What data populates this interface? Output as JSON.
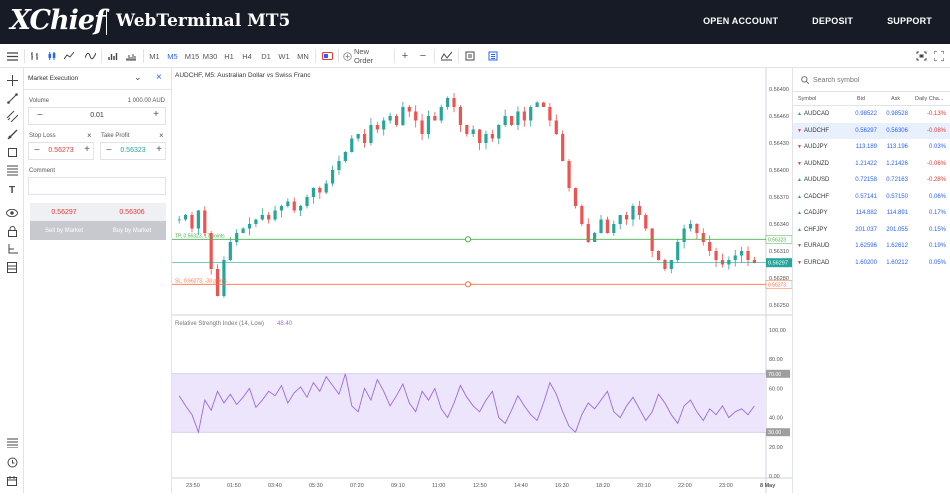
{
  "header": {
    "logo_text": "XChief",
    "app_title": "WebTerminal MT5",
    "nav": [
      "OPEN ACCOUNT",
      "DEPOSIT",
      "SUPPORT"
    ]
  },
  "toolbar": {
    "timeframes": [
      "M1",
      "M5",
      "M15",
      "M30",
      "H1",
      "H4",
      "D1",
      "W1",
      "MN"
    ],
    "active_timeframe": "M5",
    "new_order_label": "New Order"
  },
  "order_panel": {
    "execution_type": "Market Execution",
    "volume_label": "Volume",
    "volume_hint": "1 000.00 AUD",
    "volume_value": "0.01",
    "stop_loss_label": "Stop Loss",
    "stop_loss_value": "0.56273",
    "take_profit_label": "Take Profit",
    "take_profit_value": "0.56323",
    "comment_label": "Comment",
    "comment_value": "",
    "sell_price": "0.56297",
    "buy_price": "0.56306",
    "sell_label": "Sell by Market",
    "buy_label": "Buy by Market",
    "minus": "−",
    "plus": "+",
    "close": "×",
    "chevron": "⌄"
  },
  "chart": {
    "title": "AUDCHF, M5: Australian Dollar vs Swiss Franc",
    "price_ticks": [
      "0.56490",
      "0.56460",
      "0.56430",
      "0.56400",
      "0.56370",
      "0.56340",
      "0.56310",
      "0.56280",
      "0.56250"
    ],
    "tp_label": "TP, 0.56323, 17 points",
    "sl_label": "SL, 0.56273, -33 points",
    "tp_tag": "0.56323",
    "sl_tag": "0.56273",
    "current_price": "0.56297",
    "indicator_title": "Relative Strength Index (14, Low)",
    "indicator_value": "48.40",
    "rsi_ticks": [
      "100.00",
      "80.00",
      "60.00",
      "40.00",
      "20.00",
      "0.00"
    ],
    "rsi_70": "70.00",
    "rsi_30": "30.00",
    "time_ticks": [
      "23:50",
      "01:50",
      "03:40",
      "05:30",
      "07:20",
      "09:10",
      "11:00",
      "12:50",
      "14:40",
      "16:30",
      "18:20",
      "20:10",
      "22:00",
      "23:00",
      "8 May"
    ],
    "colors": {
      "bull": "#26a69a",
      "bear": "#ef5350",
      "tp": "#4caf50",
      "sl": "#ff7043",
      "rsi": "#9c6ade",
      "rsi_band": "#ede5fb"
    }
  },
  "chart_data": {
    "type": "candlestick",
    "symbol": "AUDCHF",
    "timeframe": "M5",
    "ylim": [
      0.5624,
      0.565
    ],
    "rsi_ylim": [
      0,
      100
    ],
    "close_path": [
      0.56345,
      0.5635,
      0.56335,
      0.56355,
      0.5633,
      0.5629,
      0.5626,
      0.563,
      0.5632,
      0.5633,
      0.56335,
      0.5634,
      0.56345,
      0.5635,
      0.56345,
      0.56355,
      0.5636,
      0.56365,
      0.56355,
      0.5636,
      0.5637,
      0.5638,
      0.56375,
      0.56385,
      0.564,
      0.5641,
      0.5642,
      0.56435,
      0.5644,
      0.5643,
      0.5645,
      0.56445,
      0.56455,
      0.5646,
      0.5645,
      0.5647,
      0.56465,
      0.56455,
      0.5644,
      0.5646,
      0.56455,
      0.5647,
      0.5648,
      0.5647,
      0.5645,
      0.5644,
      0.56445,
      0.5643,
      0.5644,
      0.56435,
      0.5645,
      0.5646,
      0.5645,
      0.56465,
      0.56455,
      0.5647,
      0.56475,
      0.5647,
      0.56455,
      0.5644,
      0.5641,
      0.5638,
      0.5636,
      0.5634,
      0.5632,
      0.5633,
      0.56345,
      0.5633,
      0.5634,
      0.5635,
      0.56345,
      0.5636,
      0.5635,
      0.56335,
      0.5631,
      0.563,
      0.5629,
      0.563,
      0.5632,
      0.56335,
      0.5634,
      0.5633,
      0.5632,
      0.5631,
      0.563,
      0.56295,
      0.563,
      0.56305,
      0.5631,
      0.563,
      0.56297
    ],
    "rsi_path": [
      55,
      48,
      42,
      30,
      52,
      45,
      58,
      50,
      56,
      49,
      54,
      60,
      47,
      52,
      58,
      55,
      62,
      50,
      57,
      61,
      54,
      64,
      58,
      68,
      62,
      56,
      70,
      48,
      44,
      60,
      52,
      66,
      58,
      48,
      55,
      63,
      50,
      44,
      58,
      52,
      60,
      46,
      40,
      50,
      62,
      54,
      48,
      44,
      52,
      58,
      40,
      36,
      45,
      55,
      48,
      42,
      38,
      50,
      64,
      56,
      44,
      34,
      30,
      42,
      50,
      46,
      52,
      58,
      44,
      40,
      48,
      54,
      46,
      38,
      44,
      56,
      50,
      42,
      36,
      48,
      52,
      44,
      38,
      46,
      42,
      48,
      40,
      44,
      46,
      42,
      48
    ],
    "tp": 0.56323,
    "sl": 0.56273,
    "last": 0.56297
  },
  "right_panel": {
    "search_placeholder": "Search symbol",
    "columns": [
      "Symbol",
      "Bid",
      "Ask",
      "Daily Cha..."
    ],
    "rows": [
      {
        "symbol": "AUDCAD",
        "bid": "0.98522",
        "ask": "0.98528",
        "change": "-0.13%",
        "dir": "up",
        "neg": true
      },
      {
        "symbol": "AUDCHF",
        "bid": "0.56297",
        "ask": "0.56306",
        "change": "-0.08%",
        "dir": "dn",
        "neg": true
      },
      {
        "symbol": "AUDJPY",
        "bid": "113.189",
        "ask": "113.196",
        "change": "0.03%",
        "dir": "dn",
        "neg": false
      },
      {
        "symbol": "AUDNZD",
        "bid": "1.21422",
        "ask": "1.21426",
        "change": "-0.06%",
        "dir": "dn",
        "neg": true
      },
      {
        "symbol": "AUDUSD",
        "bid": "0.72158",
        "ask": "0.72163",
        "change": "-0.28%",
        "dir": "up",
        "neg": true
      },
      {
        "symbol": "CADCHF",
        "bid": "0.57141",
        "ask": "0.57150",
        "change": "0.06%",
        "dir": "up",
        "neg": false
      },
      {
        "symbol": "CADJPY",
        "bid": "114.882",
        "ask": "114.891",
        "change": "0.17%",
        "dir": "up",
        "neg": false
      },
      {
        "symbol": "CHFJPY",
        "bid": "201.037",
        "ask": "201.055",
        "change": "0.15%",
        "dir": "up",
        "neg": false
      },
      {
        "symbol": "EURAUD",
        "bid": "1.62596",
        "ask": "1.62612",
        "change": "0.19%",
        "dir": "dn",
        "neg": false
      },
      {
        "symbol": "EURCAD",
        "bid": "1.60200",
        "ask": "1.60212",
        "change": "0.05%",
        "dir": "dn",
        "neg": false
      }
    ]
  }
}
